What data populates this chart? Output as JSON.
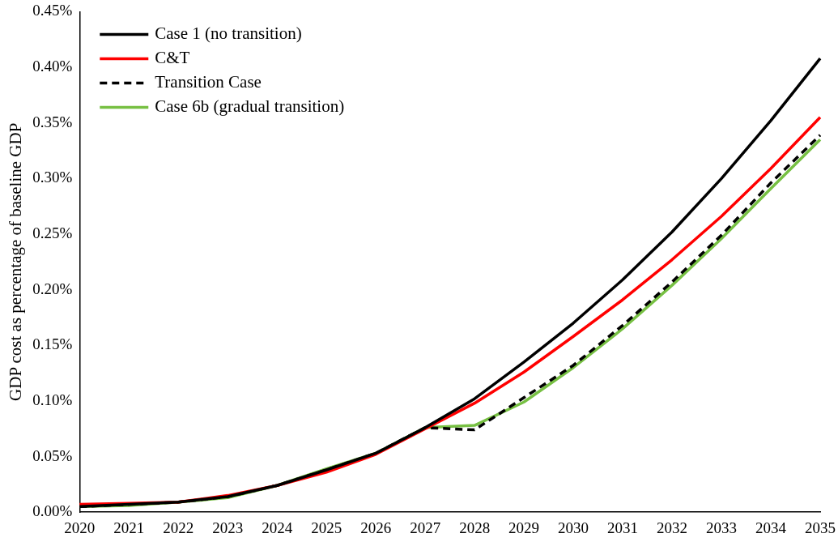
{
  "chart_data": {
    "type": "line",
    "ylabel": "GDP cost as percentage of baseline GDP",
    "categories": [
      "2020",
      "2021",
      "2022",
      "2023",
      "2024",
      "2025",
      "2026",
      "2027",
      "2028",
      "2029",
      "2030",
      "2031",
      "2032",
      "2033",
      "2034",
      "2035"
    ],
    "ylim": [
      0,
      0.45
    ],
    "yticks": [
      {
        "value": 0,
        "label": "0.00%"
      },
      {
        "value": 0.05,
        "label": "0.05%"
      },
      {
        "value": 0.1,
        "label": "0.10%"
      },
      {
        "value": 0.15,
        "label": "0.15%"
      },
      {
        "value": 0.2,
        "label": "0.20%"
      },
      {
        "value": 0.25,
        "label": "0.25%"
      },
      {
        "value": 0.3,
        "label": "0.30%"
      },
      {
        "value": 0.35,
        "label": "0.35%"
      },
      {
        "value": 0.4,
        "label": "0.40%"
      },
      {
        "value": 0.45,
        "label": "0.45%"
      }
    ],
    "grid": false,
    "legend": "top left",
    "marker": "none",
    "series": [
      {
        "name": "Case 1 (no transition)",
        "color": "#000000",
        "line_style": "solid",
        "values": [
          0.005,
          0.007,
          0.009,
          0.014,
          0.024,
          0.038,
          0.053,
          0.076,
          0.102,
          0.135,
          0.17,
          0.209,
          0.252,
          0.3,
          0.352,
          0.408
        ]
      },
      {
        "name": "C&T",
        "color": "#ff0000",
        "line_style": "solid",
        "values": [
          0.007,
          0.008,
          0.009,
          0.015,
          0.024,
          0.036,
          0.052,
          0.075,
          0.098,
          0.126,
          0.158,
          0.191,
          0.227,
          0.266,
          0.309,
          0.355
        ]
      },
      {
        "name": "Transition Case",
        "color": "#000000",
        "line_style": "dashed",
        "values": [
          0.005,
          0.007,
          0.009,
          0.014,
          0.024,
          0.038,
          0.053,
          0.076,
          0.074,
          0.103,
          0.132,
          0.168,
          0.207,
          0.249,
          0.296,
          0.339
        ]
      },
      {
        "name": "Case 6b (gradual transition)",
        "color": "#77c043",
        "line_style": "solid",
        "values": [
          0.005,
          0.006,
          0.009,
          0.013,
          0.024,
          0.039,
          0.053,
          0.076,
          0.078,
          0.099,
          0.13,
          0.165,
          0.204,
          0.246,
          0.291,
          0.335
        ]
      }
    ]
  }
}
